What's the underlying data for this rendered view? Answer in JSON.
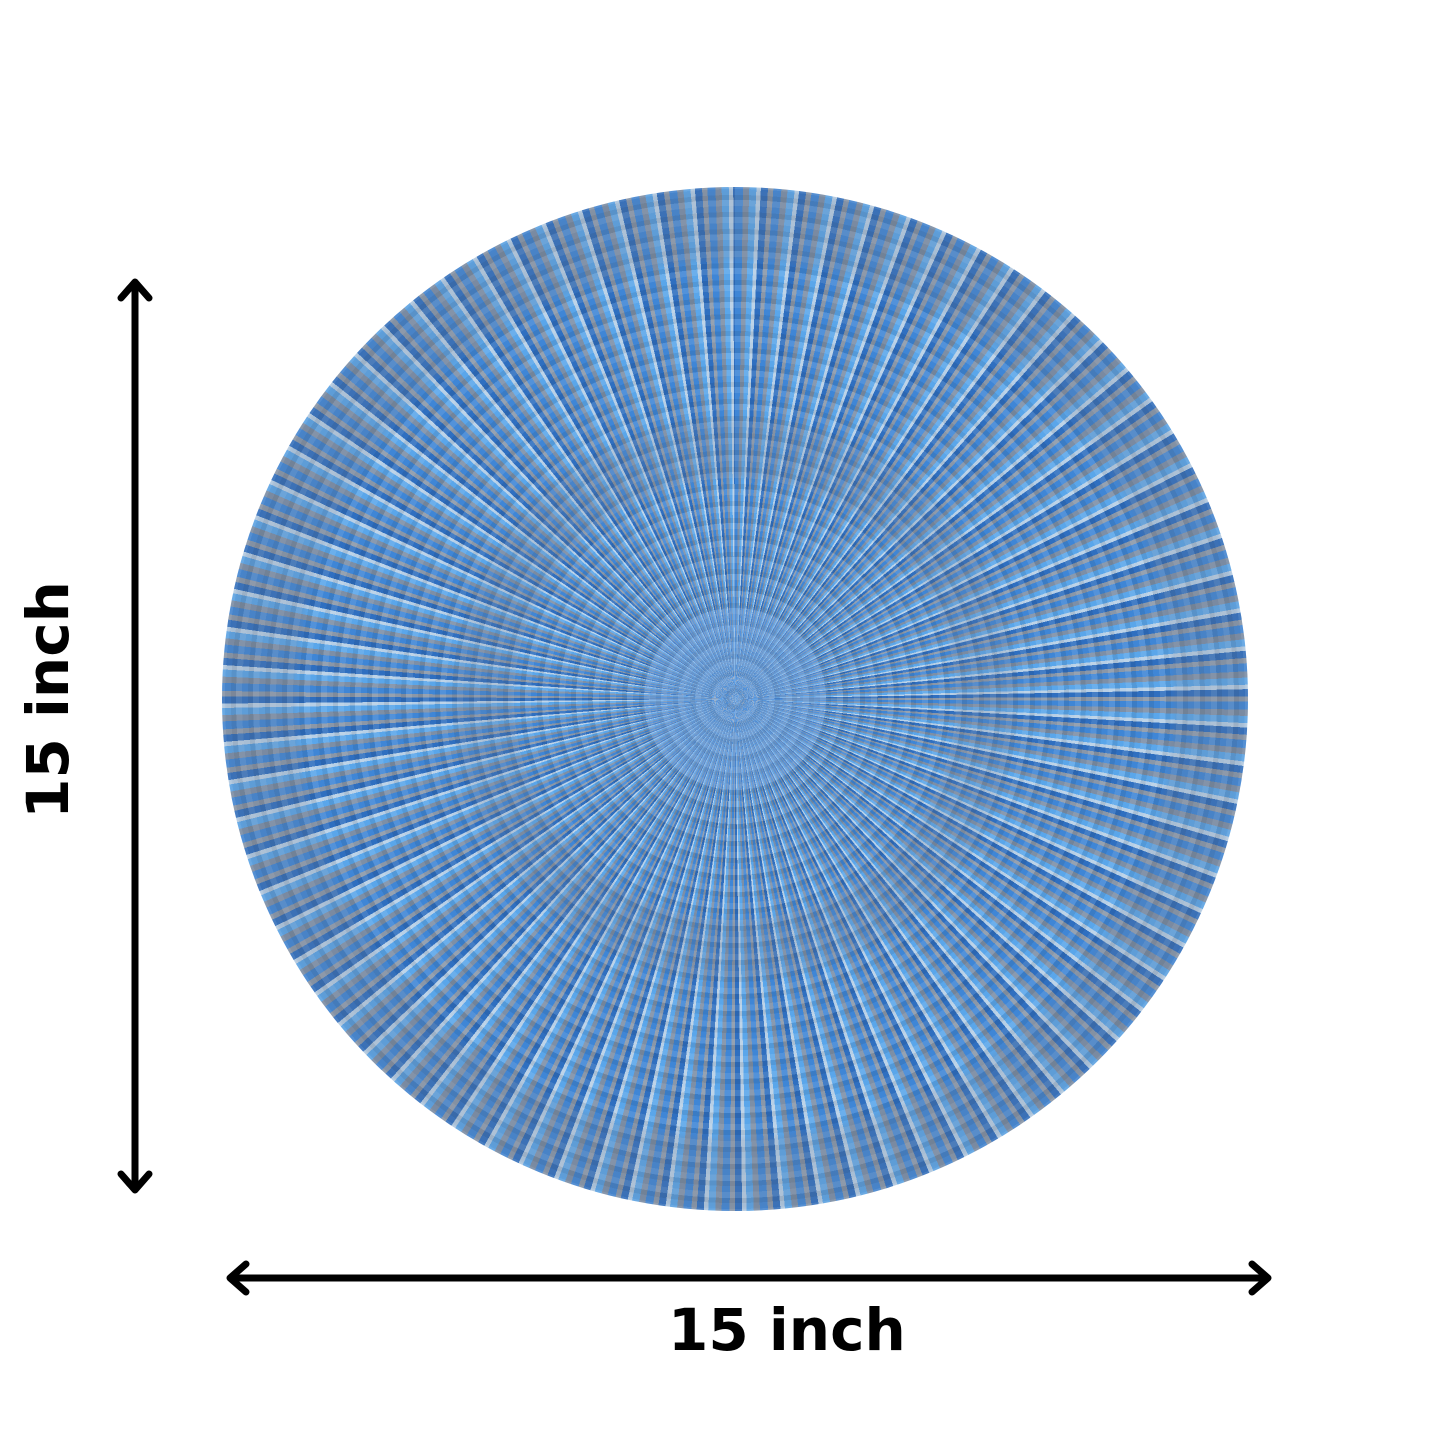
{
  "product": {
    "shape": "round woven placemat",
    "colors": {
      "primary": "#4a8fd8",
      "secondary": "#7d8fa6",
      "highlight": "#b7cfe6"
    }
  },
  "dimensions": {
    "width_label": "15 inch",
    "height_label": "15 inch",
    "arrow_color": "#000000"
  }
}
